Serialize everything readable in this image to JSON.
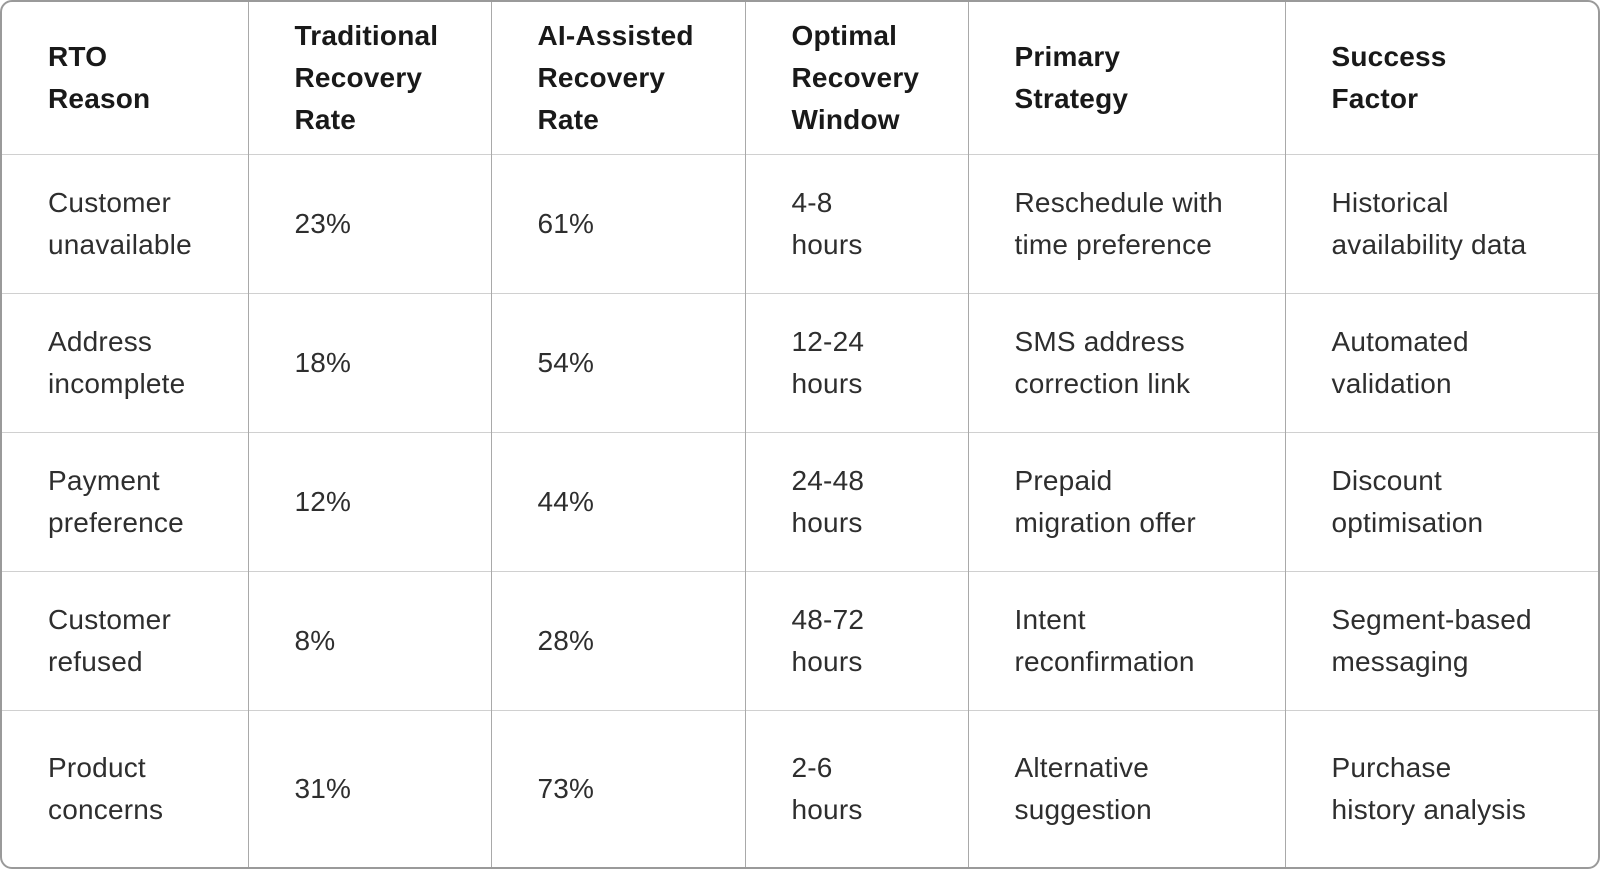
{
  "chart_data": {
    "type": "table",
    "title": "",
    "columns": [
      "RTO Reason",
      "Traditional Recovery Rate",
      "AI-Assisted Recovery Rate",
      "Optimal Recovery Window",
      "Primary Strategy",
      "Success Factor"
    ],
    "rows": [
      [
        "Customer unavailable",
        "23%",
        "61%",
        "4-8 hours",
        "Reschedule with time preference",
        "Historical availability data"
      ],
      [
        "Address incomplete",
        "18%",
        "54%",
        "12-24 hours",
        "SMS address correction link",
        "Automated validation"
      ],
      [
        "Payment preference",
        "12%",
        "44%",
        "24-48 hours",
        "Prepaid migration offer",
        "Discount optimisation"
      ],
      [
        "Customer refused",
        "8%",
        "28%",
        "48-72 hours",
        "Intent reconfirmation",
        "Segment-based messaging"
      ],
      [
        "Product concerns",
        "31%",
        "73%",
        "2-6 hours",
        "Alternative suggestion",
        "Purchase history analysis"
      ]
    ]
  },
  "display": {
    "header_cells": [
      "RTO\nReason",
      "Traditional\nRecovery\nRate",
      "AI-Assisted\nRecovery\nRate",
      "Optimal\nRecovery\nWindow",
      "Primary\nStrategy",
      "Success\nFactor"
    ],
    "rows": [
      {
        "cells": [
          "Customer\nunavailable",
          "23%",
          "61%",
          "4-8\nhours",
          "Reschedule with\ntime preference",
          "Historical\navailability data"
        ]
      },
      {
        "cells": [
          "Address\nincomplete",
          "18%",
          "54%",
          "12-24\nhours",
          "SMS address\ncorrection link",
          "Automated\nvalidation"
        ]
      },
      {
        "cells": [
          "Payment\npreference",
          "12%",
          "44%",
          "24-48\nhours",
          "Prepaid\nmigration offer",
          "Discount\noptimisation"
        ]
      },
      {
        "cells": [
          "Customer\nrefused",
          "8%",
          "28%",
          "48-72\nhours",
          "Intent\nreconfirmation",
          "Segment-based\nmessaging"
        ]
      },
      {
        "cells": [
          "Product\nconcerns",
          "31%",
          "73%",
          "2-6\nhours",
          "Alternative\nsuggestion",
          "Purchase\nhistory analysis"
        ]
      }
    ]
  },
  "colors": {
    "background": "#ffffff",
    "outer_border": "#9a9a9a",
    "column_divider": "#a9a9a9",
    "row_divider": "#d0d0d0",
    "header_text": "#191919",
    "body_text": "#2e2e2e"
  }
}
